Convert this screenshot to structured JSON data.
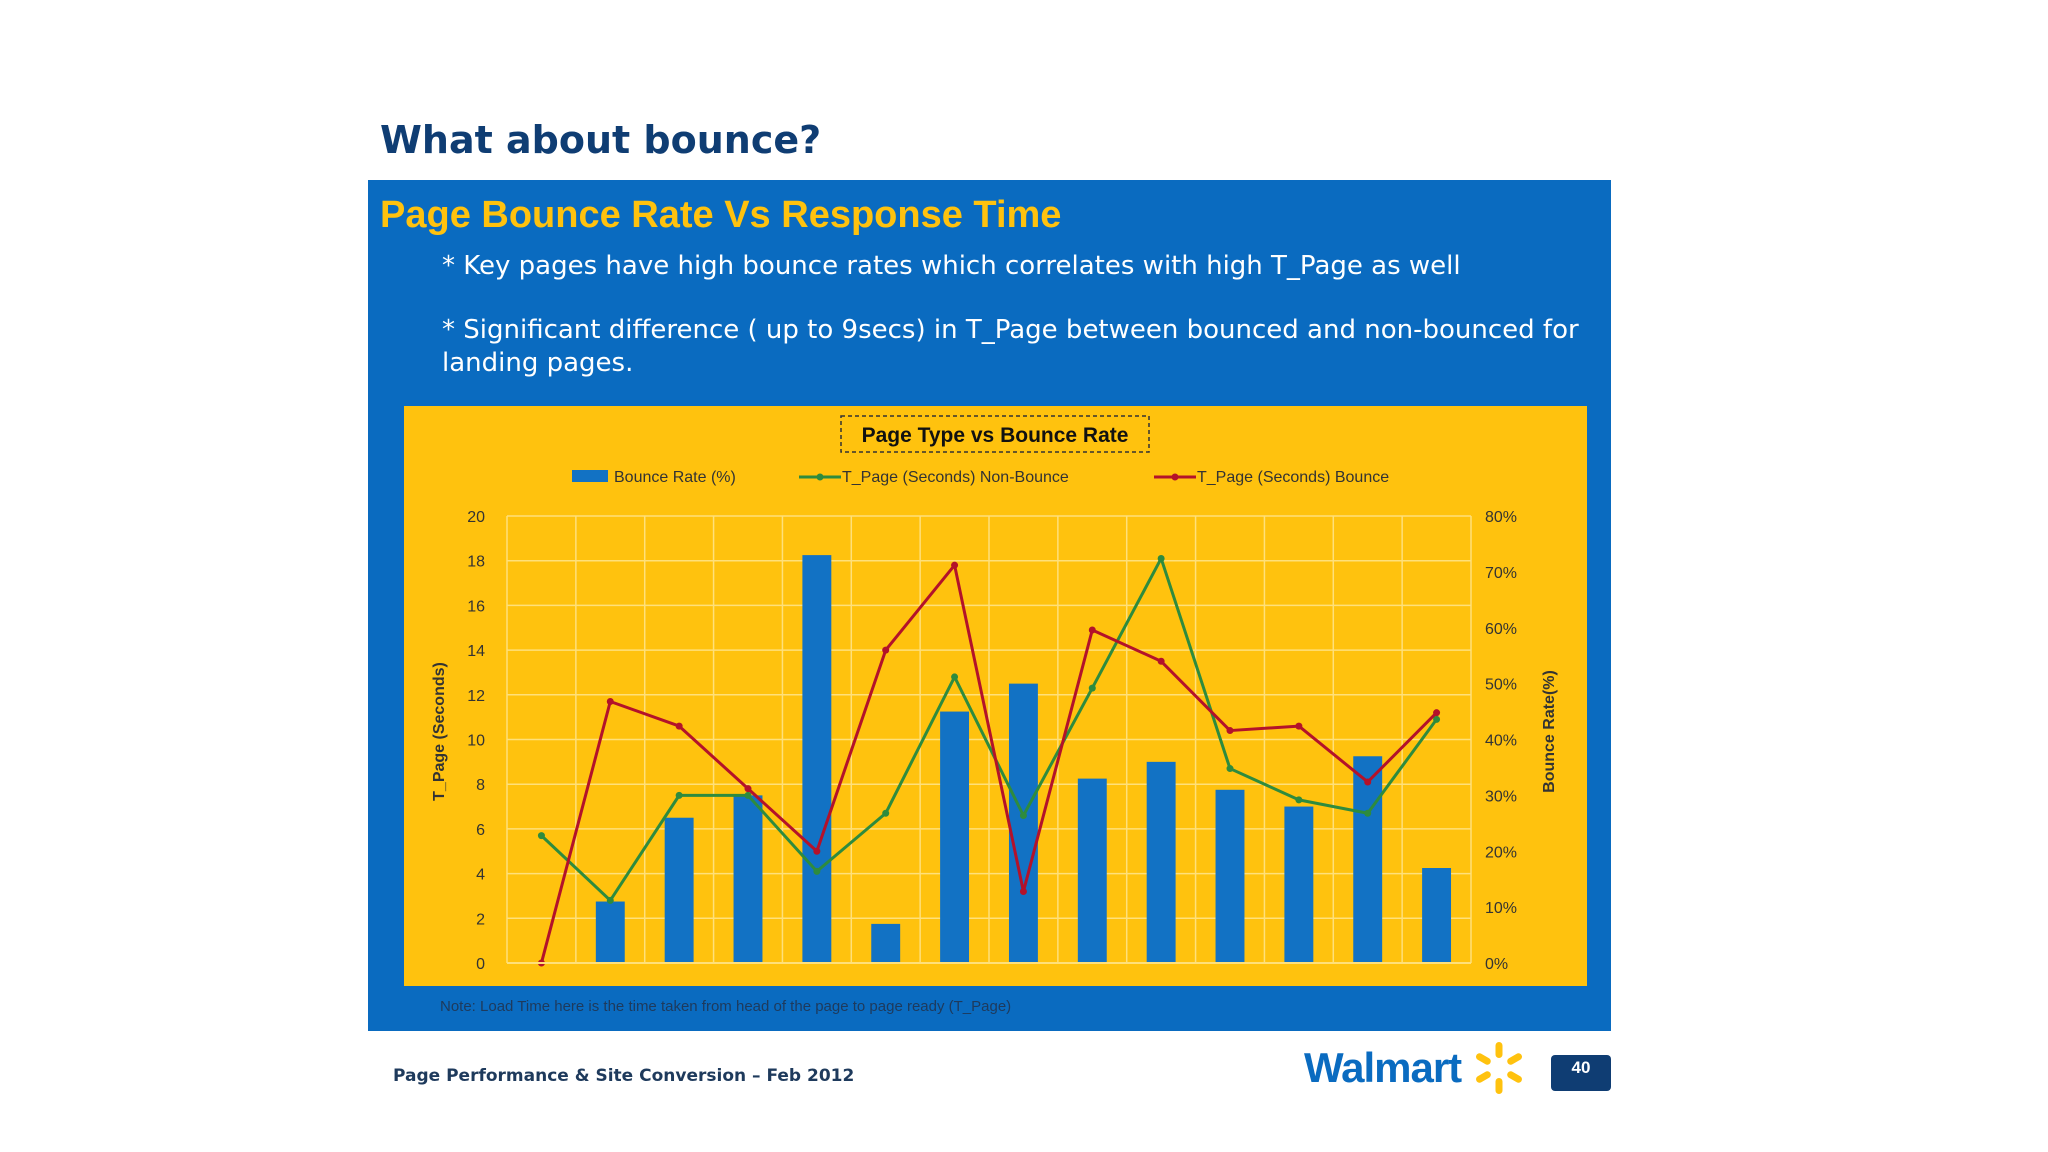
{
  "slide": {
    "title": "What about bounce?",
    "panel_title": "Page Bounce Rate Vs Response Time",
    "bullets": [
      "* Key pages have high bounce rates which correlates with high T_Page as well",
      "* Significant difference ( up to 9secs) in T_Page between bounced and non-bounced for landing pages."
    ],
    "note": "Note: Load Time here is the time taken from head of the page to page ready (T_Page)",
    "footer": "Page Performance & Site Conversion – Feb 2012",
    "logo_text": "Walmart",
    "page_number": "40"
  },
  "colors": {
    "panel_blue": "#0a6bc0",
    "chart_yellow": "#ffc20e",
    "bar_blue": "#1272c4",
    "line_green": "#2e8b3e",
    "line_red": "#b3122a",
    "title_navy": "#0f3d73"
  },
  "icons": {
    "logo": "walmart-spark-icon"
  },
  "chart_data": {
    "type": "bar",
    "title": "Page Type vs Bounce Rate",
    "categories": [
      "",
      "",
      "",
      "",
      "",
      "",
      "",
      "",
      "",
      "",
      "",
      "",
      "",
      ""
    ],
    "series": [
      {
        "name": "Bounce Rate (%)",
        "type": "bar",
        "axis": "right",
        "values": [
          0,
          11,
          26,
          30,
          73,
          7,
          45,
          50,
          33,
          36,
          31,
          28,
          37,
          17
        ]
      },
      {
        "name": "T_Page (Seconds) Non-Bounce",
        "type": "line",
        "axis": "left",
        "values": [
          5.7,
          2.8,
          7.5,
          7.5,
          4.1,
          6.7,
          12.8,
          6.6,
          12.3,
          18.1,
          8.7,
          7.3,
          6.7,
          10.9
        ]
      },
      {
        "name": "T_Page (Seconds) Bounce",
        "type": "line",
        "axis": "left",
        "values": [
          0,
          11.7,
          10.6,
          7.8,
          5.0,
          14.0,
          17.8,
          3.2,
          14.9,
          13.5,
          10.4,
          10.6,
          8.1,
          11.2
        ]
      }
    ],
    "ylabel": "T_Page (Seconds)",
    "ylim": [
      0,
      20
    ],
    "y_ticks": [
      0,
      2,
      4,
      6,
      8,
      10,
      12,
      14,
      16,
      18,
      20
    ],
    "y2label": "Bounce Rate(%)",
    "y2lim": [
      0,
      80
    ],
    "y2_ticks": [
      "0%",
      "10%",
      "20%",
      "30%",
      "40%",
      "50%",
      "60%",
      "70%",
      "80%"
    ],
    "grid": true,
    "legend": "top"
  }
}
